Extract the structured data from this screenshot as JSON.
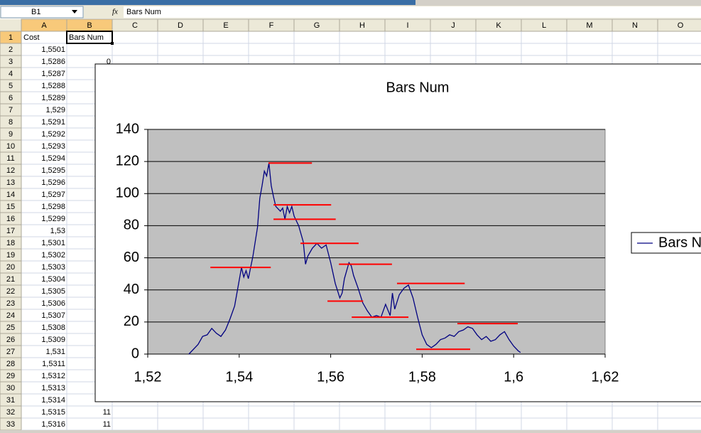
{
  "window": {
    "name_box": "B1",
    "formula": "Bars Num"
  },
  "sheet": {
    "columns": [
      "A",
      "B",
      "C",
      "D",
      "E",
      "F",
      "G",
      "H",
      "I",
      "J",
      "K",
      "L",
      "M",
      "N",
      "O"
    ],
    "rows": [
      {
        "n": 1,
        "a": "Cost",
        "b": "Bars Num"
      },
      {
        "n": 2,
        "a": "1,5501"
      },
      {
        "n": 3,
        "a": "1,5286",
        "b": "0"
      },
      {
        "n": 4,
        "a": "1,5287"
      },
      {
        "n": 5,
        "a": "1,5288"
      },
      {
        "n": 6,
        "a": "1,5289"
      },
      {
        "n": 7,
        "a": "1,529"
      },
      {
        "n": 8,
        "a": "1,5291"
      },
      {
        "n": 9,
        "a": "1,5292"
      },
      {
        "n": 10,
        "a": "1,5293"
      },
      {
        "n": 11,
        "a": "1,5294"
      },
      {
        "n": 12,
        "a": "1,5295"
      },
      {
        "n": 13,
        "a": "1,5296"
      },
      {
        "n": 14,
        "a": "1,5297"
      },
      {
        "n": 15,
        "a": "1,5298"
      },
      {
        "n": 16,
        "a": "1,5299"
      },
      {
        "n": 17,
        "a": "1,53"
      },
      {
        "n": 18,
        "a": "1,5301"
      },
      {
        "n": 19,
        "a": "1,5302"
      },
      {
        "n": 20,
        "a": "1,5303"
      },
      {
        "n": 21,
        "a": "1,5304"
      },
      {
        "n": 22,
        "a": "1,5305"
      },
      {
        "n": 23,
        "a": "1,5306"
      },
      {
        "n": 24,
        "a": "1,5307"
      },
      {
        "n": 25,
        "a": "1,5308"
      },
      {
        "n": 26,
        "a": "1,5309"
      },
      {
        "n": 27,
        "a": "1,531"
      },
      {
        "n": 28,
        "a": "1,5311"
      },
      {
        "n": 29,
        "a": "1,5312"
      },
      {
        "n": 30,
        "a": "1,5313"
      },
      {
        "n": 31,
        "a": "1,5314"
      },
      {
        "n": 32,
        "a": "1,5315",
        "b": "11"
      },
      {
        "n": 33,
        "a": "1,5316",
        "b": "11"
      }
    ]
  },
  "chart_data": {
    "type": "line",
    "title": "Bars Num",
    "xlim": [
      1.52,
      1.62
    ],
    "xticks": [
      {
        "value": 1.52,
        "label": "1,52"
      },
      {
        "value": 1.54,
        "label": "1,54"
      },
      {
        "value": 1.56,
        "label": "1,56"
      },
      {
        "value": 1.58,
        "label": "1,58"
      },
      {
        "value": 1.6,
        "label": "1,6"
      },
      {
        "value": 1.62,
        "label": "1,62"
      }
    ],
    "ylim": [
      0,
      140
    ],
    "yticks": [
      0,
      20,
      40,
      60,
      80,
      100,
      120,
      140
    ],
    "grid": true,
    "plot_background": "#c0c0c0",
    "legend": "right",
    "series": [
      {
        "name": "Bars Num",
        "color": "#000080",
        "x": [
          1.529,
          1.531,
          1.532,
          1.533,
          1.534,
          1.535,
          1.536,
          1.537,
          1.538,
          1.539,
          1.54,
          1.5405,
          1.541,
          1.5415,
          1.542,
          1.543,
          1.544,
          1.5445,
          1.545,
          1.5455,
          1.546,
          1.5465,
          1.547,
          1.5475,
          1.548,
          1.549,
          1.5495,
          1.55,
          1.5505,
          1.551,
          1.5515,
          1.552,
          1.553,
          1.554,
          1.5545,
          1.555,
          1.556,
          1.557,
          1.558,
          1.559,
          1.56,
          1.561,
          1.562,
          1.5625,
          1.563,
          1.564,
          1.5645,
          1.565,
          1.566,
          1.567,
          1.568,
          1.569,
          1.57,
          1.571,
          1.572,
          1.573,
          1.5735,
          1.574,
          1.575,
          1.576,
          1.577,
          1.578,
          1.579,
          1.58,
          1.581,
          1.582,
          1.583,
          1.584,
          1.585,
          1.586,
          1.587,
          1.588,
          1.589,
          1.59,
          1.591,
          1.592,
          1.593,
          1.594,
          1.595,
          1.596,
          1.597,
          1.598,
          1.599,
          1.6,
          1.601,
          1.6015
        ],
        "values": [
          0,
          6,
          11,
          12,
          16,
          13,
          11,
          15,
          22,
          30,
          46,
          54,
          48,
          52,
          47,
          61,
          79,
          97,
          105,
          114,
          111,
          119,
          105,
          98,
          92,
          89,
          91,
          84,
          92,
          88,
          92,
          86,
          80,
          70,
          56,
          61,
          66,
          69,
          66,
          68,
          57,
          44,
          35,
          38,
          47,
          57,
          55,
          49,
          41,
          32,
          27,
          23,
          24,
          23,
          31,
          24,
          38,
          28,
          37,
          41,
          43,
          35,
          23,
          12,
          6,
          4,
          6,
          9,
          10,
          12,
          11,
          14,
          15,
          17,
          16,
          12,
          9,
          11,
          8,
          9,
          12,
          14,
          9,
          5,
          2,
          1
        ]
      }
    ],
    "segments": {
      "color": "#ff0000",
      "items": [
        {
          "x0": 1.5464,
          "x1": 1.5559,
          "y": 119
        },
        {
          "x0": 1.5475,
          "x1": 1.5601,
          "y": 93
        },
        {
          "x0": 1.5475,
          "x1": 1.5611,
          "y": 84
        },
        {
          "x0": 1.5534,
          "x1": 1.5661,
          "y": 69
        },
        {
          "x0": 1.5337,
          "x1": 1.5469,
          "y": 54
        },
        {
          "x0": 1.5618,
          "x1": 1.5734,
          "y": 56
        },
        {
          "x0": 1.5745,
          "x1": 1.5893,
          "y": 44
        },
        {
          "x0": 1.5593,
          "x1": 1.5671,
          "y": 33
        },
        {
          "x0": 1.5646,
          "x1": 1.577,
          "y": 23
        },
        {
          "x0": 1.5877,
          "x1": 1.6009,
          "y": 19
        },
        {
          "x0": 1.5787,
          "x1": 1.5905,
          "y": 3
        }
      ]
    }
  }
}
